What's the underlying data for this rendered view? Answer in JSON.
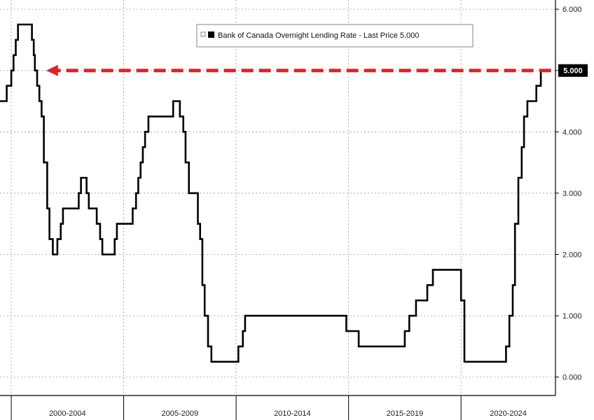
{
  "chart_data": {
    "type": "line",
    "legend": {
      "label": "Bank of Canada Overnight Lending Rate - Last Price 5.000",
      "placement": "top-center",
      "series_color": "#000000"
    },
    "last_value_label": "5.000",
    "last_value": 5.0,
    "y_tick_labels": [
      "0.000",
      "1.000",
      "2.000",
      "3.000",
      "4.000",
      "5.000",
      "6.000"
    ],
    "y_ticks": [
      0,
      1,
      2,
      3,
      4,
      5,
      6
    ],
    "ylim": [
      -0.3,
      6.15
    ],
    "x_tick_labels": [
      "2000-2004",
      "2005-2009",
      "2010-2014",
      "2015-2019",
      "2020-2024"
    ],
    "x_period_bounds": [
      2000,
      2005,
      2010,
      2015,
      2020,
      2025
    ],
    "xlim": [
      1999.5,
      2024.2
    ],
    "grid": true,
    "annotation": {
      "type": "dashed-arrow",
      "color": "#d7262b",
      "from_x": 2024.0,
      "to_x": 2001.55,
      "y": 5.0
    },
    "series": [
      {
        "color": "#000000",
        "points": [
          [
            1999.5,
            4.5
          ],
          [
            1999.8,
            4.5
          ],
          [
            1999.8,
            4.75
          ],
          [
            2000.0,
            4.75
          ],
          [
            2000.0,
            5.0
          ],
          [
            2000.1,
            5.0
          ],
          [
            2000.1,
            5.25
          ],
          [
            2000.2,
            5.25
          ],
          [
            2000.2,
            5.5
          ],
          [
            2000.3,
            5.5
          ],
          [
            2000.3,
            5.75
          ],
          [
            2000.92,
            5.75
          ],
          [
            2000.92,
            5.5
          ],
          [
            2001.0,
            5.5
          ],
          [
            2001.0,
            5.25
          ],
          [
            2001.05,
            5.25
          ],
          [
            2001.05,
            5.0
          ],
          [
            2001.15,
            5.0
          ],
          [
            2001.15,
            4.75
          ],
          [
            2001.25,
            4.75
          ],
          [
            2001.25,
            4.5
          ],
          [
            2001.35,
            4.5
          ],
          [
            2001.35,
            4.25
          ],
          [
            2001.45,
            4.25
          ],
          [
            2001.45,
            3.5
          ],
          [
            2001.6,
            3.5
          ],
          [
            2001.6,
            2.75
          ],
          [
            2001.7,
            2.75
          ],
          [
            2001.7,
            2.25
          ],
          [
            2001.85,
            2.25
          ],
          [
            2001.85,
            2.0
          ],
          [
            2002.05,
            2.0
          ],
          [
            2002.05,
            2.25
          ],
          [
            2002.2,
            2.25
          ],
          [
            2002.2,
            2.5
          ],
          [
            2002.3,
            2.5
          ],
          [
            2002.3,
            2.75
          ],
          [
            2003.0,
            2.75
          ],
          [
            2003.0,
            3.0
          ],
          [
            2003.1,
            3.0
          ],
          [
            2003.1,
            3.25
          ],
          [
            2003.35,
            3.25
          ],
          [
            2003.35,
            3.0
          ],
          [
            2003.45,
            3.0
          ],
          [
            2003.45,
            2.75
          ],
          [
            2003.8,
            2.75
          ],
          [
            2003.8,
            2.5
          ],
          [
            2003.95,
            2.5
          ],
          [
            2003.95,
            2.25
          ],
          [
            2004.05,
            2.25
          ],
          [
            2004.05,
            2.0
          ],
          [
            2004.6,
            2.0
          ],
          [
            2004.6,
            2.25
          ],
          [
            2004.7,
            2.25
          ],
          [
            2004.7,
            2.5
          ],
          [
            2005.4,
            2.5
          ],
          [
            2005.4,
            2.75
          ],
          [
            2005.55,
            2.75
          ],
          [
            2005.55,
            3.0
          ],
          [
            2005.65,
            3.0
          ],
          [
            2005.65,
            3.25
          ],
          [
            2005.75,
            3.25
          ],
          [
            2005.75,
            3.5
          ],
          [
            2005.85,
            3.5
          ],
          [
            2005.85,
            3.75
          ],
          [
            2005.95,
            3.75
          ],
          [
            2005.95,
            4.0
          ],
          [
            2006.1,
            4.0
          ],
          [
            2006.1,
            4.25
          ],
          [
            2007.2,
            4.25
          ],
          [
            2007.2,
            4.5
          ],
          [
            2007.5,
            4.5
          ],
          [
            2007.5,
            4.25
          ],
          [
            2007.65,
            4.25
          ],
          [
            2007.65,
            4.0
          ],
          [
            2007.75,
            4.0
          ],
          [
            2007.75,
            3.5
          ],
          [
            2007.9,
            3.5
          ],
          [
            2007.9,
            3.0
          ],
          [
            2008.3,
            3.0
          ],
          [
            2008.3,
            2.5
          ],
          [
            2008.4,
            2.5
          ],
          [
            2008.4,
            2.25
          ],
          [
            2008.5,
            2.25
          ],
          [
            2008.5,
            1.5
          ],
          [
            2008.6,
            1.5
          ],
          [
            2008.6,
            1.0
          ],
          [
            2008.75,
            1.0
          ],
          [
            2008.75,
            0.5
          ],
          [
            2008.9,
            0.5
          ],
          [
            2008.9,
            0.25
          ],
          [
            2010.1,
            0.25
          ],
          [
            2010.1,
            0.5
          ],
          [
            2010.3,
            0.5
          ],
          [
            2010.3,
            0.75
          ],
          [
            2010.4,
            0.75
          ],
          [
            2010.4,
            1.0
          ],
          [
            2014.9,
            1.0
          ],
          [
            2014.9,
            0.75
          ],
          [
            2015.45,
            0.75
          ],
          [
            2015.45,
            0.5
          ],
          [
            2017.5,
            0.5
          ],
          [
            2017.5,
            0.75
          ],
          [
            2017.7,
            0.75
          ],
          [
            2017.7,
            1.0
          ],
          [
            2018.0,
            1.0
          ],
          [
            2018.0,
            1.25
          ],
          [
            2018.5,
            1.25
          ],
          [
            2018.5,
            1.5
          ],
          [
            2018.75,
            1.5
          ],
          [
            2018.75,
            1.75
          ],
          [
            2020.0,
            1.75
          ],
          [
            2020.0,
            1.25
          ],
          [
            2020.15,
            1.25
          ],
          [
            2020.15,
            0.25
          ],
          [
            2022.0,
            0.25
          ],
          [
            2022.0,
            0.5
          ],
          [
            2022.15,
            0.5
          ],
          [
            2022.15,
            1.0
          ],
          [
            2022.3,
            1.0
          ],
          [
            2022.3,
            1.5
          ],
          [
            2022.4,
            1.5
          ],
          [
            2022.4,
            2.5
          ],
          [
            2022.55,
            2.5
          ],
          [
            2022.55,
            3.25
          ],
          [
            2022.7,
            3.25
          ],
          [
            2022.7,
            3.75
          ],
          [
            2022.8,
            3.75
          ],
          [
            2022.8,
            4.25
          ],
          [
            2022.95,
            4.25
          ],
          [
            2022.95,
            4.5
          ],
          [
            2023.35,
            4.5
          ],
          [
            2023.35,
            4.75
          ],
          [
            2023.55,
            4.75
          ],
          [
            2023.55,
            5.0
          ],
          [
            2024.0,
            5.0
          ]
        ]
      }
    ]
  }
}
